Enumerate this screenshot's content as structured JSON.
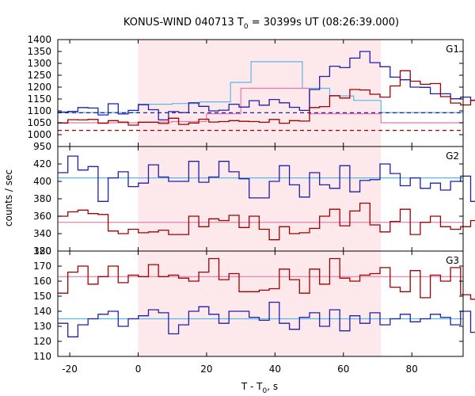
{
  "chart_data": {
    "type": "line",
    "title_main": "KONUS-WIND 040713 T",
    "title_sub": "0",
    "title_rest": " = 30399s UT (08:26:39.000)",
    "xlabel_main": "T - T",
    "xlabel_sub": "0",
    "xlabel_rest": ", s",
    "ylabel": "counts / sec",
    "xlim": [
      -23.5,
      95
    ],
    "shaded_interval": [
      0,
      71
    ],
    "colors": {
      "red": "#a00000",
      "blue": "#1f1fb0",
      "light_blue": "#5ab8e8",
      "pink": "#e878a8",
      "shade": "#fde8ec"
    },
    "x_ticks": [
      -20,
      0,
      20,
      40,
      60,
      80
    ],
    "x_tick_labels": [
      "-20",
      "0",
      "20",
      "40",
      "60",
      "80"
    ],
    "panels": [
      {
        "label": "G1",
        "ylim": [
          950,
          1400
        ],
        "yticks": [
          950,
          1000,
          1050,
          1100,
          1150,
          1200,
          1250,
          1300,
          1350,
          1400
        ],
        "ytick_labels": [
          "950",
          "1000",
          "1050",
          "1100",
          "1150",
          "1200",
          "1250",
          "1300",
          "1350",
          "1400"
        ],
        "bin_start": -23.5,
        "bin_width": 2.944,
        "series": [
          {
            "color": "blue",
            "values": [
              1095,
              1098,
              1114,
              1112,
              1083,
              1130,
              1087,
              1102,
              1126,
              1105,
              1062,
              1097,
              1093,
              1134,
              1119,
              1100,
              1103,
              1128,
              1116,
              1143,
              1124,
              1148,
              1134,
              1115,
              1102,
              1190,
              1245,
              1288,
              1282,
              1322,
              1350,
              1303,
              1286,
              1242,
              1231,
              1200,
              1199,
              1172,
              1172,
              1151,
              1158,
              1144,
              1125,
              1127,
              1121,
              1106,
              1110,
              1097,
              1095,
              1109,
              1103,
              1115,
              1145,
              1143,
              1088,
              1075,
              1094,
              1085,
              1083,
              1090
            ]
          },
          {
            "color": "red",
            "values": [
              1049,
              1063,
              1062,
              1064,
              1048,
              1059,
              1053,
              1040,
              1052,
              1052,
              1047,
              1069,
              1043,
              1049,
              1065,
              1053,
              1055,
              1059,
              1056,
              1055,
              1052,
              1064,
              1048,
              1059,
              1057,
              1114,
              1118,
              1164,
              1154,
              1190,
              1188,
              1170,
              1158,
              1205,
              1269,
              1225,
              1212,
              1215,
              1160,
              1133,
              1125,
              1145,
              1111,
              1112,
              1098,
              1110,
              1098,
              1097,
              1077,
              1072,
              1089,
              1053,
              1085,
              1084,
              1048,
              1031,
              1033,
              1025,
              1031,
              1033
            ]
          }
        ],
        "models": [
          {
            "color": "light_blue",
            "segments": [
              {
                "x": [
                  -23.5,
                  0
                ],
                "y": [
                  1093,
                  1093
                ]
              },
              {
                "x": [
                  0,
                  10
                ],
                "y": [
                  1128,
                  1128
                ]
              },
              {
                "x": [
                  10,
                  18
                ],
                "y": [
                  1131,
                  1131
                ]
              },
              {
                "x": [
                  18,
                  27
                ],
                "y": [
                  1138,
                  1138
                ]
              },
              {
                "x": [
                  27,
                  33
                ],
                "y": [
                  1220,
                  1220
                ]
              },
              {
                "x": [
                  33,
                  48
                ],
                "y": [
                  1307,
                  1307
                ]
              },
              {
                "x": [
                  48,
                  56
                ],
                "y": [
                  1195,
                  1195
                ]
              },
              {
                "x": [
                  56,
                  63
                ],
                "y": [
                  1163,
                  1163
                ]
              },
              {
                "x": [
                  63,
                  71
                ],
                "y": [
                  1144,
                  1144
                ]
              },
              {
                "x": [
                  71,
                  95
                ],
                "y": [
                  1093,
                  1093
                ]
              }
            ]
          },
          {
            "color": "pink",
            "segments": [
              {
                "x": [
                  -23.5,
                  0
                ],
                "y": [
                  1050,
                  1050
                ]
              },
              {
                "x": [
                  0,
                  10
                ],
                "y": [
                  1053,
                  1053
                ]
              },
              {
                "x": [
                  10,
                  20
                ],
                "y": [
                  1055,
                  1055
                ]
              },
              {
                "x": [
                  20,
                  30
                ],
                "y": [
                  1088,
                  1088
                ]
              },
              {
                "x": [
                  30,
                  50
                ],
                "y": [
                  1195,
                  1195
                ]
              },
              {
                "x": [
                  50,
                  71
                ],
                "y": [
                  1088,
                  1088
                ]
              },
              {
                "x": [
                  71,
                  95
                ],
                "y": [
                  1050,
                  1050
                ]
              }
            ]
          }
        ],
        "baselines": [
          {
            "color": "blue",
            "y": 1092,
            "style": "dashed"
          },
          {
            "color": "red",
            "y": 1018,
            "style": "dashed"
          }
        ]
      },
      {
        "label": "G2",
        "ylim": [
          320,
          440
        ],
        "yticks": [
          320,
          340,
          360,
          380,
          400,
          420
        ],
        "ytick_labels": [
          "320",
          "340",
          "360",
          "380",
          "400",
          "420"
        ],
        "bin_start": -23.5,
        "bin_width": 2.944,
        "series": [
          {
            "color": "blue",
            "values": [
              410,
              429,
              413,
              417,
              377,
              404,
              411,
              394,
              398,
              419,
              405,
              400,
              400,
              423,
              399,
              405,
              423,
              411,
              403,
              381,
              381,
              400,
              418,
              396,
              382,
              410,
              396,
              392,
              418,
              388,
              401,
              402,
              420,
              409,
              395,
              404,
              392,
              398,
              390,
              400,
              406,
              377,
              387,
              405,
              385,
              400,
              392,
              388,
              375,
              400,
              411,
              409,
              402,
              378,
              392,
              410,
              402,
              398,
              383,
              382
            ]
          },
          {
            "color": "red",
            "values": [
              360,
              365,
              367,
              363,
              362,
              343,
              340,
              345,
              341,
              342,
              344,
              339,
              339,
              360,
              348,
              357,
              355,
              361,
              347,
              360,
              345,
              333,
              348,
              340,
              341,
              346,
              360,
              368,
              349,
              366,
              375,
              350,
              342,
              354,
              368,
              339,
              353,
              360,
              348,
              345,
              348,
              355,
              337,
              368,
              375,
              355,
              364,
              366,
              346,
              355,
              336,
              350,
              362,
              357,
              343,
              358,
              361,
              364,
              362,
              362
            ]
          }
        ],
        "models": [
          {
            "color": "light_blue",
            "segments": [
              {
                "x": [
                  -23.5,
                  95
                ],
                "y": [
                  404,
                  404
                ]
              }
            ]
          },
          {
            "color": "pink",
            "segments": [
              {
                "x": [
                  -23.5,
                  95
                ],
                "y": [
                  353,
                  353
                ]
              }
            ]
          }
        ],
        "baselines": []
      },
      {
        "label": "G3",
        "ylim": [
          110,
          180
        ],
        "yticks": [
          110,
          120,
          130,
          140,
          150,
          160,
          170,
          180
        ],
        "ytick_labels": [
          "110",
          "120",
          "130",
          "140",
          "150",
          "160",
          "170",
          "180"
        ],
        "bin_start": -23.5,
        "bin_width": 2.944,
        "series": [
          {
            "color": "blue",
            "values": [
              132,
              123,
              131,
              135,
              138,
              140,
              130,
              135,
              137,
              141,
              139,
              125,
              131,
              140,
              143,
              138,
              132,
              140,
              140,
              136,
              134,
              146,
              132,
              128,
              136,
              139,
              130,
              141,
              127,
              137,
              132,
              139,
              131,
              135,
              138,
              133,
              135,
              138,
              136,
              131,
              140,
              126,
              133,
              126,
              125,
              136,
              128,
              127,
              133,
              140,
              130,
              138,
              134,
              135,
              137,
              124,
              143,
              139,
              134,
              133
            ]
          },
          {
            "color": "red",
            "values": [
              152,
              166,
              170,
              158,
              163,
              170,
              159,
              164,
              163,
              171,
              163,
              164,
              162,
              160,
              166,
              175,
              161,
              165,
              153,
              153,
              154,
              155,
              168,
              161,
              152,
              168,
              158,
              175,
              162,
              160,
              164,
              165,
              169,
              156,
              153,
              167,
              149,
              164,
              160,
              169,
              151,
              148,
              166,
              147,
              164,
              175,
              165,
              160,
              168,
              168,
              153,
              149,
              162,
              168,
              166,
              168,
              159,
              163,
              170,
              158
            ]
          }
        ],
        "models": [
          {
            "color": "light_blue",
            "segments": [
              {
                "x": [
                  -23.5,
                  95
                ],
                "y": [
                  135,
                  135
                ]
              }
            ]
          },
          {
            "color": "pink",
            "segments": [
              {
                "x": [
                  -23.5,
                  95
                ],
                "y": [
                  163,
                  163
                ]
              }
            ]
          }
        ],
        "baselines": []
      }
    ]
  }
}
